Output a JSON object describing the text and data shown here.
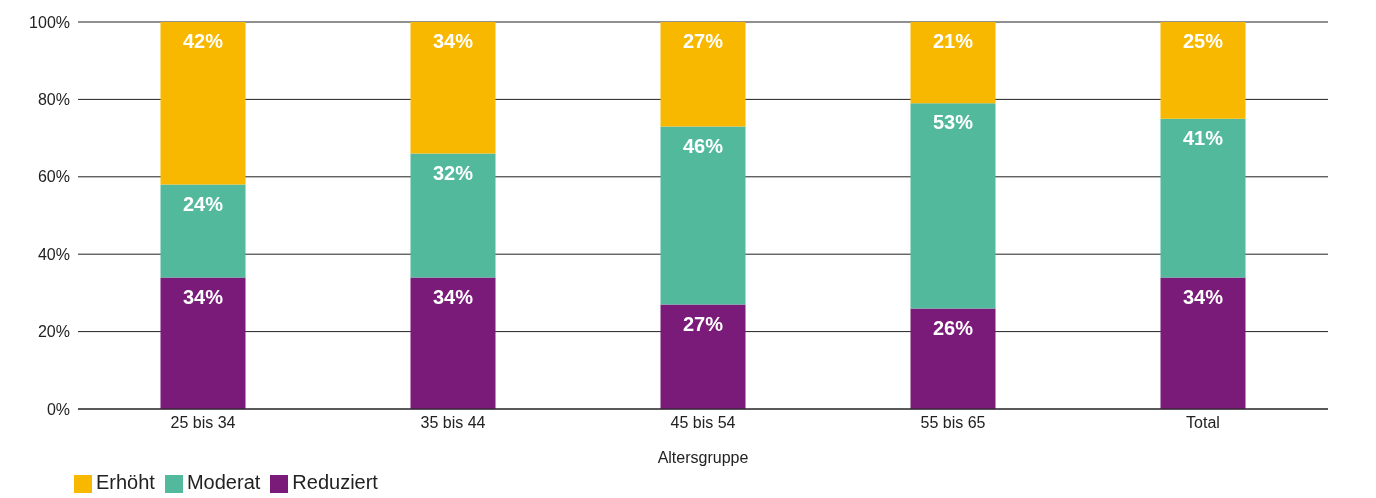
{
  "chart_data": {
    "type": "bar",
    "stacked": true,
    "xlabel": "Altersgruppe",
    "categories": [
      "25 bis 34",
      "35 bis 44",
      "45 bis 54",
      "55 bis 65",
      "Total"
    ],
    "series": [
      {
        "name": "Reduziert",
        "color": "#7a1b79",
        "values": [
          34,
          34,
          27,
          26,
          34
        ],
        "value_labels": [
          "34%",
          "34%",
          "27%",
          "26%",
          "34%"
        ]
      },
      {
        "name": "Moderat",
        "color": "#52b99c",
        "values": [
          24,
          32,
          46,
          53,
          41
        ],
        "value_labels": [
          "24%",
          "32%",
          "46%",
          "53%",
          "41%"
        ]
      },
      {
        "name": "Erhöht",
        "color": "#f9b800",
        "values": [
          42,
          34,
          27,
          21,
          25
        ],
        "value_labels": [
          "42%",
          "34%",
          "27%",
          "21%",
          "25%"
        ]
      }
    ],
    "ylim": [
      0,
      100
    ],
    "yticks": [
      {
        "value": 0,
        "label": "0%"
      },
      {
        "value": 20,
        "label": "20%"
      },
      {
        "value": 40,
        "label": "40%"
      },
      {
        "value": 60,
        "label": "60%"
      },
      {
        "value": 80,
        "label": "80%"
      },
      {
        "value": 100,
        "label": "100%"
      }
    ],
    "grid": "y",
    "legend": "bottom left"
  }
}
